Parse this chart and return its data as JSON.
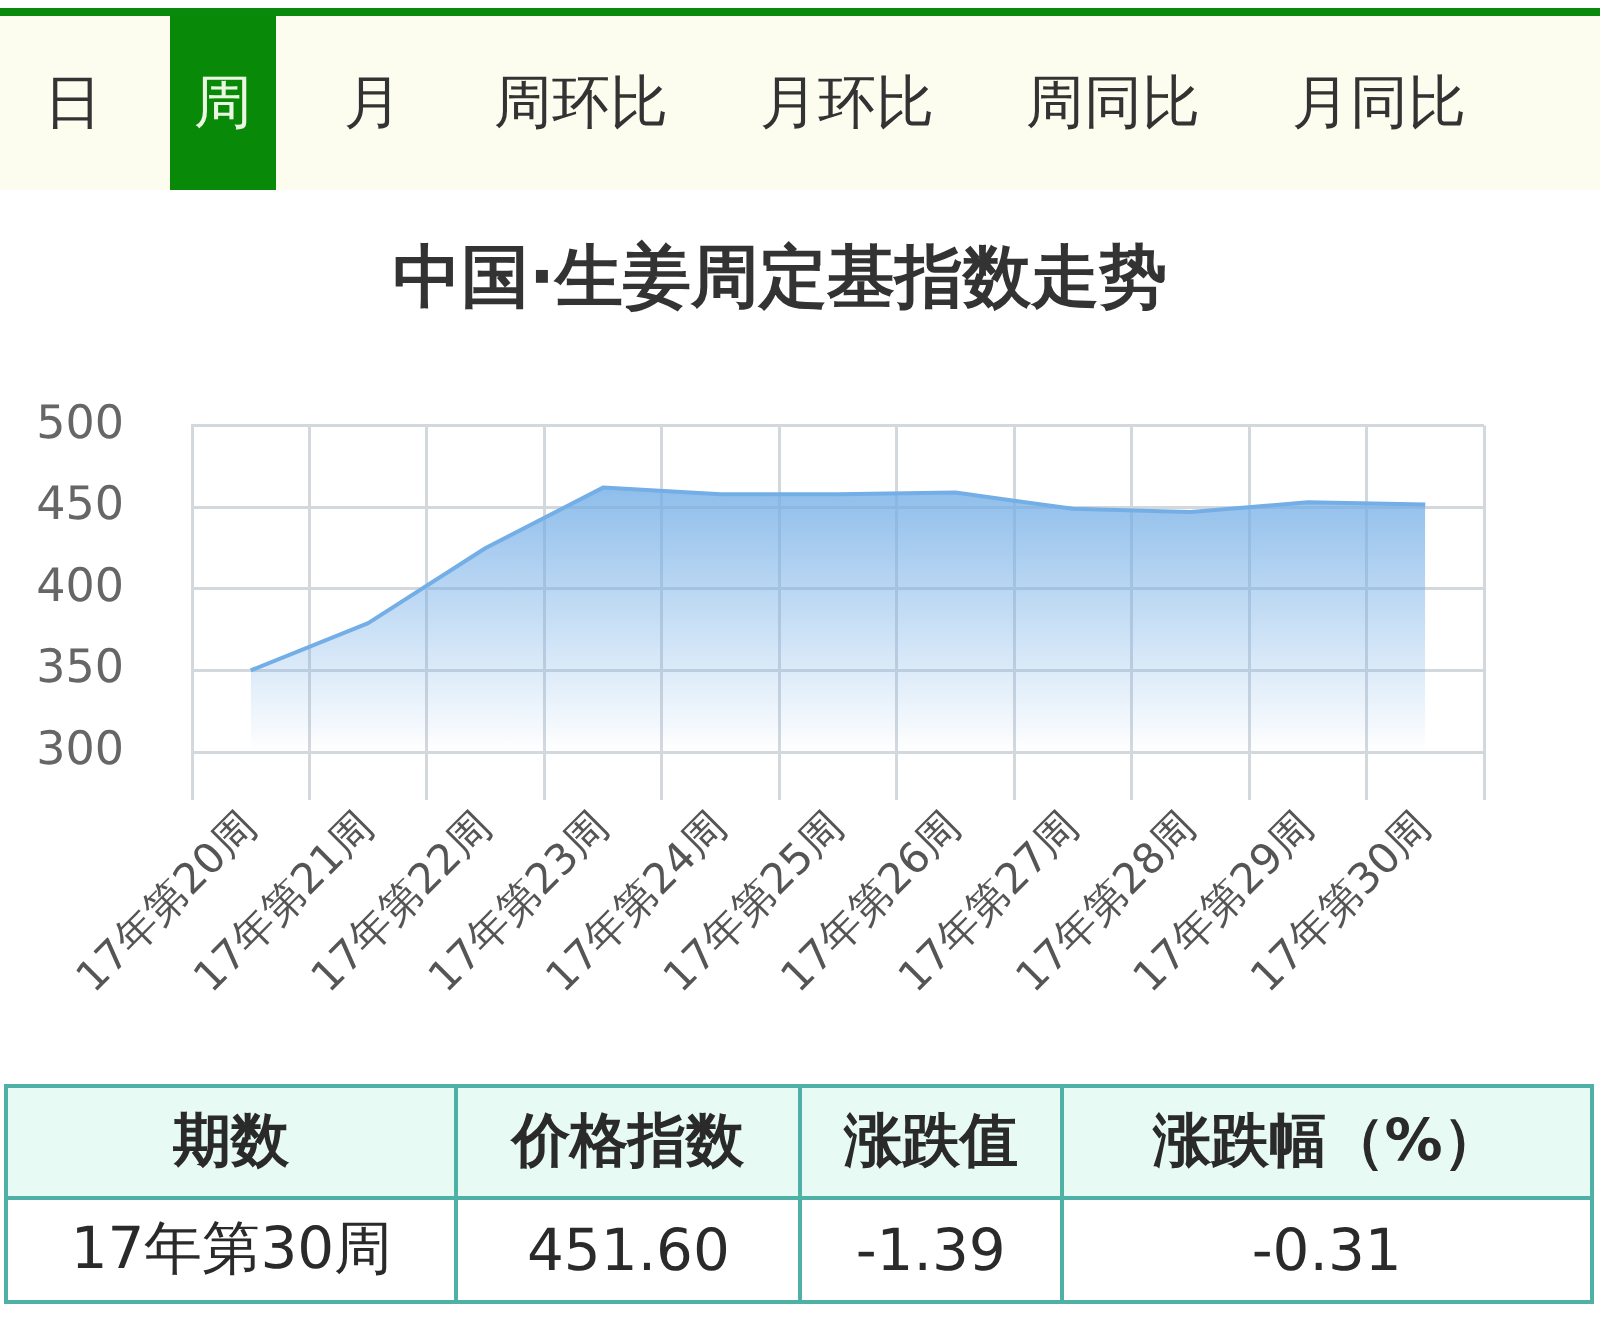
{
  "chart_data": {
    "type": "area",
    "title": "中国·生姜周定基指数走势",
    "categories": [
      "17年第20周",
      "17年第21周",
      "17年第22周",
      "17年第23周",
      "17年第24周",
      "17年第25周",
      "17年第26周",
      "17年第27周",
      "17年第28周",
      "17年第29周",
      "17年第30周"
    ],
    "values": [
      350,
      379,
      425,
      462,
      458,
      458,
      459,
      449,
      447,
      453,
      451.6
    ],
    "color": "#74aee6",
    "ylim": [
      300,
      500
    ],
    "yticks": [
      300,
      350,
      400,
      450,
      500
    ],
    "grid": true,
    "annotations": [
      "日",
      "周",
      "月",
      "周环比",
      "月环比",
      "周同比",
      "月同比",
      "期数",
      "价格指数",
      "涨跌值",
      "涨跌幅（%）",
      "17年第30周",
      "451.60",
      "-1.39",
      "-0.31"
    ]
  }
}
